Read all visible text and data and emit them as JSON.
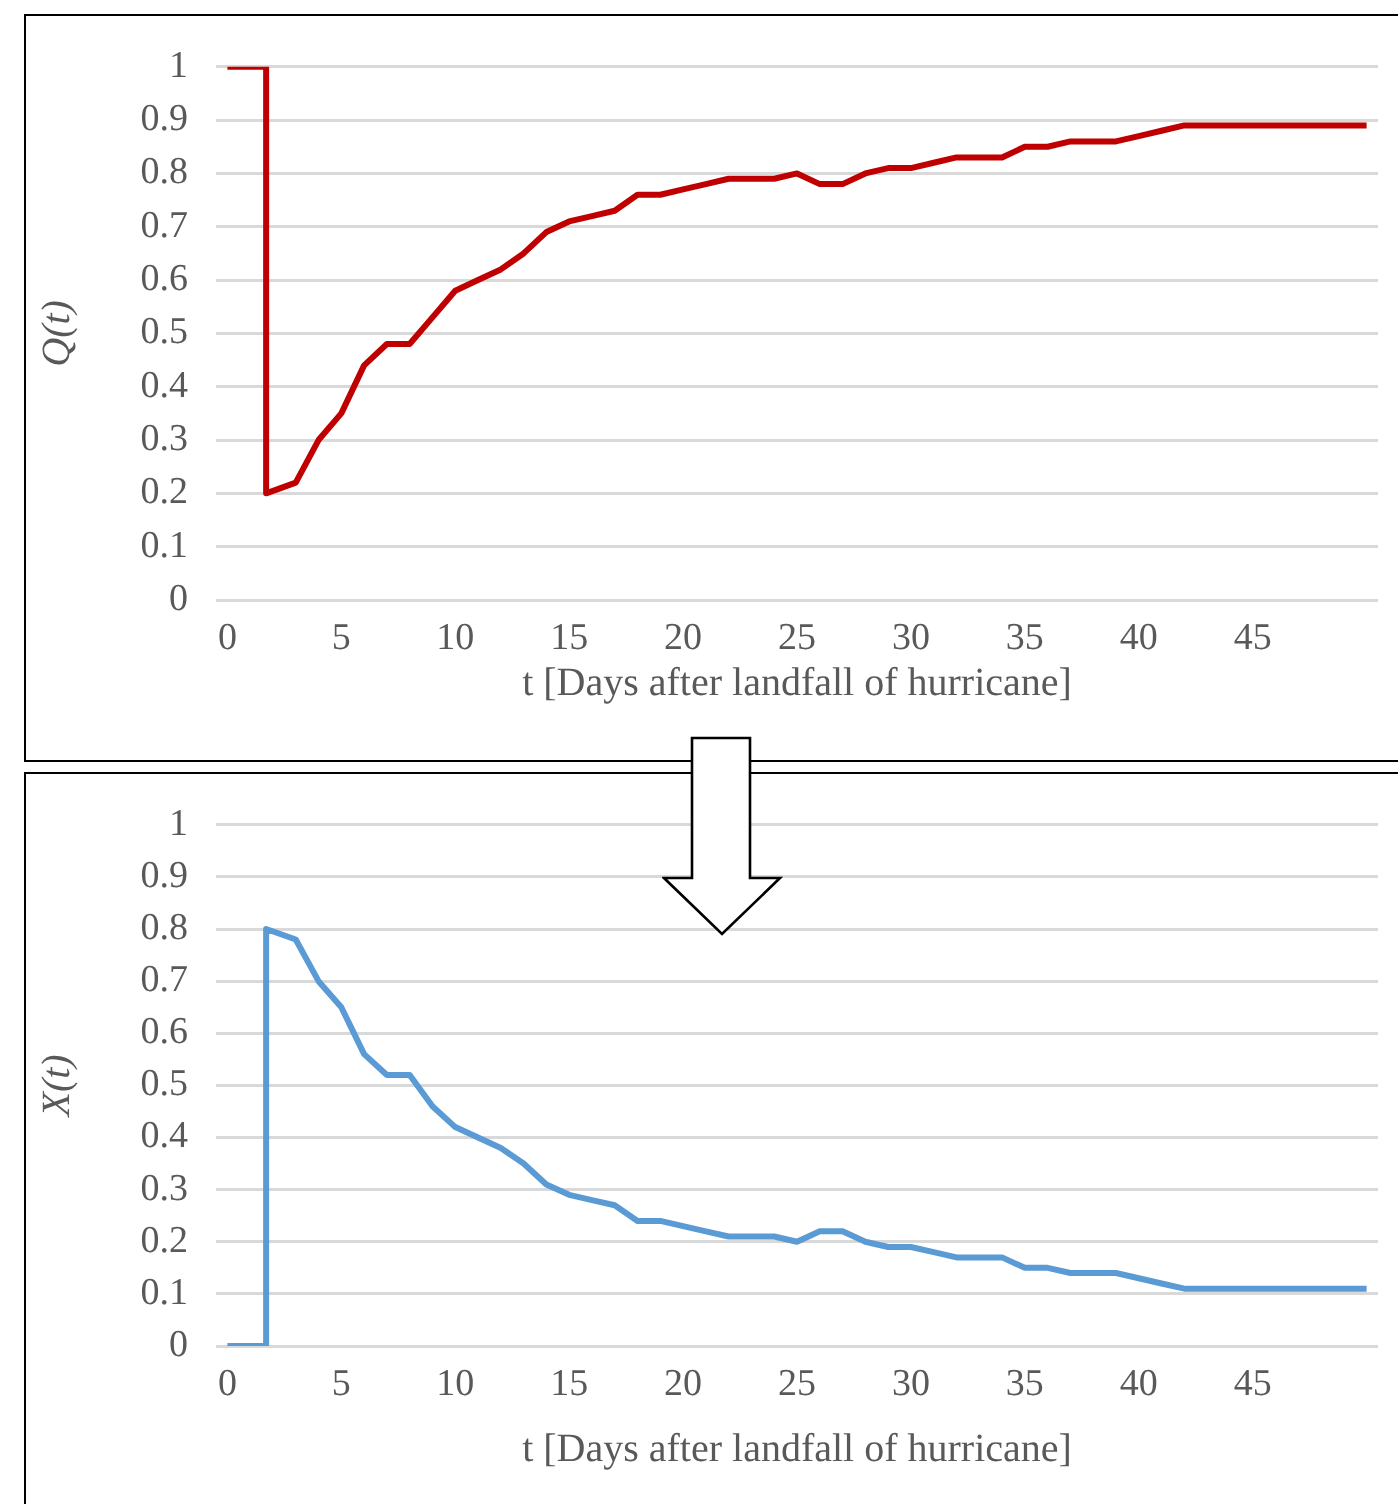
{
  "chart_data": [
    {
      "type": "line",
      "xlabel": "t [Days after landfall of hurricane]",
      "ylabel": "Q(t)",
      "x": [
        0,
        1.7,
        1.7,
        3,
        4,
        5,
        6,
        7,
        8,
        9,
        10,
        11,
        12,
        13,
        14,
        15,
        16,
        17,
        18,
        19,
        20,
        21,
        22,
        23,
        24,
        25,
        26,
        27,
        28,
        29,
        30,
        31,
        32,
        33,
        34,
        35,
        36,
        37,
        38,
        39,
        40,
        41,
        42,
        43,
        44,
        45,
        46,
        47,
        48,
        49,
        50
      ],
      "series": [
        {
          "color": "#c00000",
          "values": [
            1,
            1,
            0.2,
            0.22,
            0.3,
            0.35,
            0.44,
            0.48,
            0.48,
            0.53,
            0.58,
            0.6,
            0.62,
            0.65,
            0.69,
            0.71,
            0.72,
            0.73,
            0.76,
            0.76,
            0.77,
            0.78,
            0.79,
            0.79,
            0.79,
            0.8,
            0.78,
            0.78,
            0.8,
            0.81,
            0.81,
            0.82,
            0.83,
            0.83,
            0.83,
            0.85,
            0.85,
            0.86,
            0.86,
            0.86,
            0.87,
            0.88,
            0.89,
            0.89,
            0.89,
            0.89,
            0.89,
            0.89,
            0.89,
            0.89,
            0.89
          ]
        }
      ],
      "xlim": [
        -0.5,
        50.5
      ],
      "xticks": [
        0,
        5,
        10,
        15,
        20,
        25,
        30,
        35,
        40,
        45
      ],
      "ylim": [
        0,
        1
      ],
      "yticks": [
        0,
        0.1,
        0.2,
        0.3,
        0.4,
        0.5,
        0.6,
        0.7,
        0.8,
        0.9,
        1
      ],
      "grid": "y",
      "marker": "none",
      "line_style": "solid"
    },
    {
      "type": "line",
      "xlabel": "t [Days after landfall of hurricane]",
      "ylabel": "X(t)",
      "x": [
        0,
        1.7,
        1.7,
        3,
        4,
        5,
        6,
        7,
        8,
        9,
        10,
        11,
        12,
        13,
        14,
        15,
        16,
        17,
        18,
        19,
        20,
        21,
        22,
        23,
        24,
        25,
        26,
        27,
        28,
        29,
        30,
        31,
        32,
        33,
        34,
        35,
        36,
        37,
        38,
        39,
        40,
        41,
        42,
        43,
        44,
        45,
        46,
        47,
        48,
        49,
        50
      ],
      "series": [
        {
          "color": "#5b9bd5",
          "values": [
            0,
            0,
            0.8,
            0.78,
            0.7,
            0.65,
            0.56,
            0.52,
            0.52,
            0.46,
            0.42,
            0.4,
            0.38,
            0.35,
            0.31,
            0.29,
            0.28,
            0.27,
            0.24,
            0.24,
            0.23,
            0.22,
            0.21,
            0.21,
            0.21,
            0.2,
            0.22,
            0.22,
            0.2,
            0.19,
            0.19,
            0.18,
            0.17,
            0.17,
            0.17,
            0.15,
            0.15,
            0.14,
            0.14,
            0.14,
            0.13,
            0.12,
            0.11,
            0.11,
            0.11,
            0.11,
            0.11,
            0.11,
            0.11,
            0.11,
            0.11
          ]
        }
      ],
      "xlim": [
        -0.5,
        50.5
      ],
      "xticks": [
        0,
        5,
        10,
        15,
        20,
        25,
        30,
        35,
        40,
        45
      ],
      "ylim": [
        0,
        1
      ],
      "yticks": [
        0,
        0.1,
        0.2,
        0.3,
        0.4,
        0.5,
        0.6,
        0.7,
        0.8,
        0.9,
        1
      ],
      "grid": "y",
      "marker": "none",
      "line_style": "solid"
    }
  ]
}
